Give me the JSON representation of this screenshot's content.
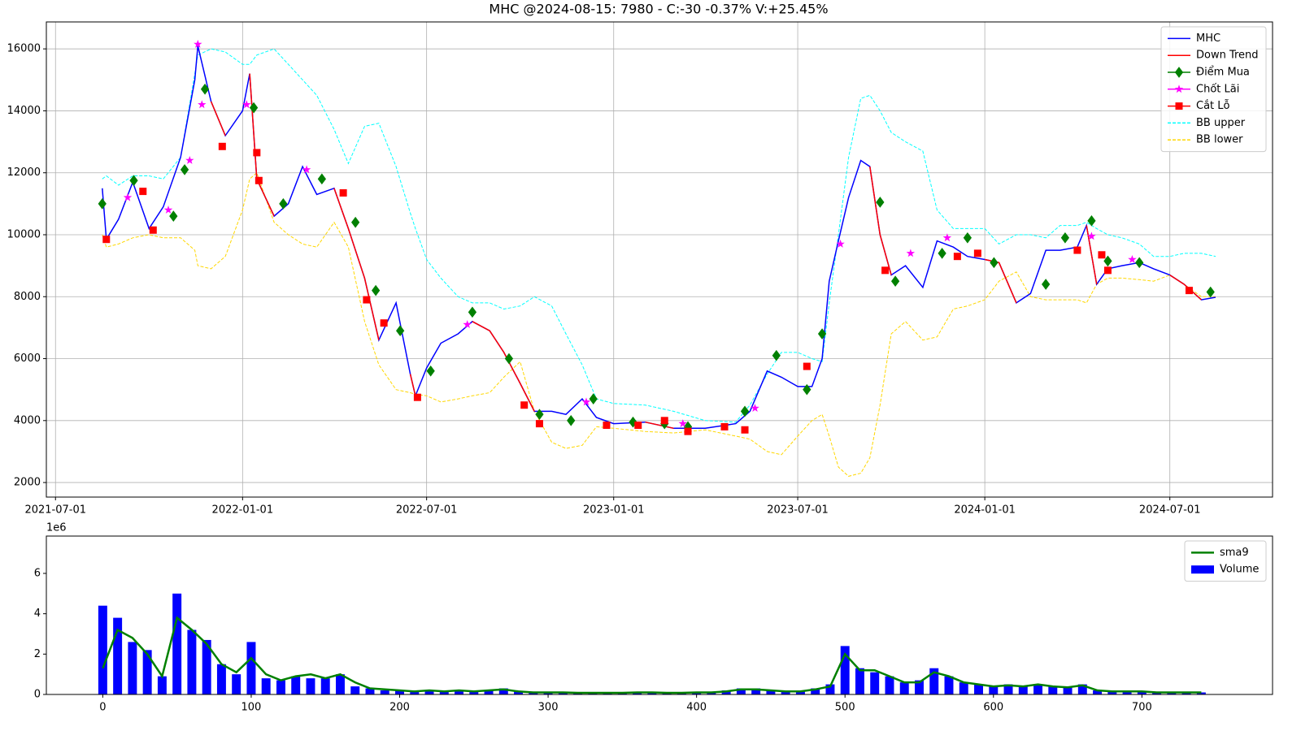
{
  "chart_data": [
    {
      "type": "line",
      "title": "MHC @2024-08-15: 7980 - C:-30 -0.37% V:+25.45%",
      "xlim": [
        "2021-06-22",
        "2024-10-10"
      ],
      "xticks": [
        "2021-07-01",
        "2022-01-01",
        "2022-07-01",
        "2023-01-01",
        "2023-07-01",
        "2024-01-01",
        "2024-07-01"
      ],
      "ylim": [
        1530,
        16870
      ],
      "yticks": [
        2000,
        4000,
        6000,
        8000,
        10000,
        12000,
        14000,
        16000
      ],
      "grid": true,
      "legend": "upper right",
      "x": [
        "2021-08-16",
        "2021-08-20",
        "2021-09-01",
        "2021-09-15",
        "2021-10-01",
        "2021-10-15",
        "2021-11-01",
        "2021-11-15",
        "2021-11-18",
        "2021-12-01",
        "2021-12-15",
        "2022-01-01",
        "2022-01-08",
        "2022-01-15",
        "2022-02-01",
        "2022-02-15",
        "2022-03-01",
        "2022-03-15",
        "2022-04-01",
        "2022-04-15",
        "2022-05-01",
        "2022-05-15",
        "2022-06-01",
        "2022-06-15",
        "2022-06-20",
        "2022-07-01",
        "2022-07-15",
        "2022-08-01",
        "2022-08-15",
        "2022-09-01",
        "2022-09-15",
        "2022-10-01",
        "2022-10-15",
        "2022-11-01",
        "2022-11-15",
        "2022-12-01",
        "2022-12-15",
        "2023-01-01",
        "2023-02-01",
        "2023-03-01",
        "2023-04-01",
        "2023-05-01",
        "2023-05-15",
        "2023-06-01",
        "2023-06-15",
        "2023-07-01",
        "2023-07-15",
        "2023-07-25",
        "2023-08-01",
        "2023-08-10",
        "2023-08-20",
        "2023-09-01",
        "2023-09-10",
        "2023-09-20",
        "2023-10-01",
        "2023-10-15",
        "2023-11-01",
        "2023-11-15",
        "2023-12-01",
        "2023-12-15",
        "2024-01-01",
        "2024-01-15",
        "2024-02-01",
        "2024-02-15",
        "2024-03-01",
        "2024-03-15",
        "2024-04-01",
        "2024-04-10",
        "2024-04-20",
        "2024-05-01",
        "2024-05-15",
        "2024-06-01",
        "2024-06-15",
        "2024-07-01",
        "2024-07-15",
        "2024-08-01",
        "2024-08-15"
      ],
      "series": [
        {
          "name": "MHC",
          "color": "#0000ff",
          "style": "solid",
          "values": [
            11500,
            9850,
            10500,
            11700,
            10200,
            10900,
            12500,
            15000,
            16100,
            14300,
            13200,
            14000,
            15200,
            11800,
            10600,
            11000,
            12200,
            11300,
            11500,
            10200,
            8600,
            6600,
            7800,
            5500,
            4800,
            5700,
            6500,
            6800,
            7200,
            6900,
            6200,
            5200,
            4300,
            4300,
            4200,
            4700,
            4100,
            3900,
            3950,
            3750,
            3750,
            3900,
            4300,
            5600,
            5400,
            5100,
            5100,
            6000,
            8500,
            9800,
            11200,
            12400,
            12200,
            10000,
            8700,
            9000,
            8300,
            9800,
            9600,
            9300,
            9200,
            9100,
            7800,
            8100,
            9500,
            9500,
            9600,
            10300,
            8400,
            8900,
            9000,
            9100,
            8900,
            8700,
            8400,
            7900,
            7980
          ]
        },
        {
          "name": "Down Trend",
          "color": "#ff0000",
          "style": "solid",
          "values": [
            null,
            null,
            null,
            null,
            null,
            null,
            null,
            null,
            null,
            14300,
            13200,
            null,
            15200,
            11800,
            10600,
            null,
            null,
            null,
            11500,
            10200,
            8600,
            6600,
            null,
            5500,
            4800,
            null,
            null,
            null,
            7200,
            6900,
            6200,
            5200,
            4300,
            null,
            null,
            null,
            null,
            null,
            3950,
            3750,
            null,
            null,
            null,
            null,
            null,
            null,
            null,
            null,
            null,
            null,
            null,
            null,
            12200,
            10000,
            8700,
            null,
            null,
            null,
            null,
            null,
            9200,
            9100,
            7800,
            null,
            null,
            null,
            null,
            10300,
            8400,
            null,
            null,
            null,
            null,
            8700,
            8400,
            7900,
            null
          ]
        },
        {
          "name": "BB upper",
          "color": "#00ffff",
          "style": "dashed",
          "values": [
            11800,
            11900,
            11600,
            11900,
            11900,
            11800,
            12500,
            15200,
            15800,
            16000,
            15900,
            15500,
            15500,
            15800,
            16000,
            15500,
            15000,
            14500,
            13400,
            12300,
            13500,
            13600,
            12200,
            10700,
            10200,
            9200,
            8600,
            8000,
            7800,
            7800,
            7600,
            7700,
            8000,
            7700,
            6800,
            5800,
            4700,
            4550,
            4500,
            4300,
            4000,
            3950,
            4500,
            5500,
            6200,
            6200,
            6000,
            5900,
            7800,
            10000,
            12500,
            14400,
            14500,
            14000,
            13300,
            13000,
            12700,
            10800,
            10200,
            10200,
            10200,
            9700,
            10000,
            10000,
            9900,
            10300,
            10300,
            10400,
            10200,
            10000,
            9900,
            9700,
            9300,
            9300,
            9400,
            9400,
            9300
          ]
        },
        {
          "name": "BB lower",
          "color": "#ffd700",
          "style": "dashed",
          "values": [
            10000,
            9600,
            9700,
            9900,
            10000,
            9900,
            9900,
            9500,
            9000,
            8900,
            9300,
            10800,
            11800,
            12000,
            10400,
            10000,
            9700,
            9600,
            10400,
            9600,
            7200,
            5800,
            5000,
            4900,
            4850,
            4800,
            4600,
            4700,
            4800,
            4900,
            5400,
            5900,
            4300,
            3300,
            3100,
            3200,
            3800,
            3750,
            3650,
            3600,
            3700,
            3500,
            3400,
            3000,
            2900,
            3500,
            4000,
            4200,
            3500,
            2500,
            2200,
            2300,
            2800,
            4500,
            6800,
            7200,
            6600,
            6700,
            7600,
            7700,
            7900,
            8500,
            8800,
            8000,
            7900,
            7900,
            7900,
            7800,
            8400,
            8600,
            8600,
            8550,
            8500,
            8700,
            8400,
            8000,
            8000
          ]
        }
      ],
      "markers": [
        {
          "name": "Điểm Mua",
          "color": "#008000",
          "marker": "diamond",
          "x": [
            "2021-08-16",
            "2021-09-16",
            "2021-10-25",
            "2021-11-05",
            "2021-11-25",
            "2022-01-12",
            "2022-02-10",
            "2022-03-20",
            "2022-04-22",
            "2022-05-12",
            "2022-06-05",
            "2022-07-05",
            "2022-08-15",
            "2022-09-20",
            "2022-10-20",
            "2022-11-20",
            "2022-12-12",
            "2023-01-20",
            "2023-02-20",
            "2023-03-15",
            "2023-05-10",
            "2023-06-10",
            "2023-07-10",
            "2023-07-25",
            "2023-09-20",
            "2023-10-05",
            "2023-11-20",
            "2023-12-15",
            "2024-01-10",
            "2024-03-01",
            "2024-03-20",
            "2024-04-15",
            "2024-05-01",
            "2024-06-01",
            "2024-08-10"
          ],
          "values": [
            11000,
            11750,
            10600,
            12100,
            14700,
            14100,
            11000,
            11800,
            10400,
            8200,
            6900,
            5600,
            7500,
            6000,
            4200,
            4000,
            4700,
            3950,
            3900,
            3800,
            4300,
            6100,
            5000,
            6800,
            11050,
            8500,
            9400,
            9900,
            9100,
            8400,
            9900,
            10450,
            9150,
            9100,
            8150
          ]
        },
        {
          "name": "Chốt Lãi",
          "color": "#ff00ff",
          "marker": "star",
          "x": [
            "2021-09-10",
            "2021-10-20",
            "2021-11-10",
            "2021-11-18",
            "2021-11-22",
            "2022-01-05",
            "2022-03-05",
            "2022-08-10",
            "2022-12-05",
            "2023-03-10",
            "2023-05-20",
            "2023-08-12",
            "2023-10-20",
            "2023-11-25",
            "2024-04-15",
            "2024-05-25"
          ],
          "values": [
            11200,
            10800,
            12400,
            16150,
            14200,
            14200,
            12100,
            7100,
            4600,
            3900,
            4400,
            9700,
            9400,
            9900,
            9950,
            9200
          ]
        },
        {
          "name": "Cắt Lỗ",
          "color": "#ff0000",
          "marker": "square",
          "x": [
            "2021-08-20",
            "2021-09-25",
            "2021-10-05",
            "2021-12-12",
            "2022-01-15",
            "2022-01-17",
            "2022-04-10",
            "2022-05-03",
            "2022-05-20",
            "2022-06-22",
            "2022-10-05",
            "2022-10-20",
            "2022-12-25",
            "2023-01-25",
            "2023-02-20",
            "2023-03-15",
            "2023-04-20",
            "2023-05-10",
            "2023-07-10",
            "2023-09-25",
            "2023-12-05",
            "2023-12-25",
            "2024-04-01",
            "2024-04-25",
            "2024-05-01",
            "2024-07-20"
          ],
          "values": [
            9850,
            11400,
            10150,
            12850,
            12650,
            11750,
            11350,
            7900,
            7150,
            4750,
            4500,
            3900,
            3850,
            3850,
            4000,
            3650,
            3800,
            3700,
            5750,
            8850,
            9300,
            9400,
            9500,
            9350,
            8850,
            8200
          ]
        }
      ],
      "legend_order": [
        "MHC",
        "Down Trend",
        "Điểm Mua",
        "Chốt Lãi",
        "Cắt Lỗ",
        "BB upper",
        "BB lower"
      ]
    },
    {
      "type": "bar",
      "offset_label": "1e6",
      "xlim": [
        -38,
        788
      ],
      "xticks": [
        0,
        100,
        200,
        300,
        400,
        500,
        600,
        700
      ],
      "ylim": [
        0,
        7.85
      ],
      "yticks": [
        0,
        2,
        4,
        6
      ],
      "grid": false,
      "legend": "upper right",
      "x": [
        0,
        10,
        20,
        30,
        40,
        50,
        60,
        70,
        80,
        90,
        100,
        110,
        120,
        130,
        140,
        150,
        160,
        170,
        180,
        190,
        200,
        210,
        220,
        230,
        240,
        250,
        260,
        270,
        280,
        290,
        300,
        310,
        320,
        330,
        340,
        350,
        360,
        370,
        380,
        390,
        400,
        410,
        420,
        430,
        440,
        450,
        460,
        470,
        480,
        490,
        500,
        510,
        520,
        530,
        540,
        550,
        560,
        570,
        580,
        590,
        600,
        610,
        620,
        630,
        640,
        650,
        660,
        670,
        680,
        690,
        700,
        710,
        720,
        730,
        740
      ],
      "series": [
        {
          "name": "sma9",
          "color": "#008000",
          "kind": "line",
          "values": [
            1.3,
            3.2,
            2.8,
            2.0,
            0.9,
            3.8,
            3.2,
            2.5,
            1.5,
            1.1,
            1.8,
            1.0,
            0.7,
            0.9,
            1.0,
            0.8,
            1.0,
            0.6,
            0.3,
            0.25,
            0.2,
            0.15,
            0.2,
            0.15,
            0.2,
            0.15,
            0.2,
            0.25,
            0.15,
            0.1,
            0.1,
            0.1,
            0.08,
            0.08,
            0.08,
            0.08,
            0.1,
            0.1,
            0.08,
            0.08,
            0.1,
            0.1,
            0.15,
            0.25,
            0.25,
            0.2,
            0.15,
            0.15,
            0.25,
            0.4,
            2.0,
            1.2,
            1.2,
            0.9,
            0.6,
            0.6,
            1.1,
            0.9,
            0.6,
            0.5,
            0.4,
            0.45,
            0.4,
            0.5,
            0.4,
            0.35,
            0.45,
            0.2,
            0.15,
            0.15,
            0.15,
            0.1,
            0.1,
            0.1,
            0.1
          ]
        },
        {
          "name": "Volume",
          "color": "#0000ff",
          "kind": "bar",
          "values": [
            4.4,
            3.8,
            2.6,
            2.2,
            0.9,
            5.0,
            3.2,
            2.7,
            1.5,
            1.0,
            2.6,
            0.8,
            0.7,
            0.9,
            0.8,
            0.8,
            1.0,
            0.4,
            0.3,
            0.2,
            0.2,
            0.15,
            0.2,
            0.2,
            0.2,
            0.15,
            0.2,
            0.3,
            0.15,
            0.1,
            0.1,
            0.1,
            0.1,
            0.08,
            0.08,
            0.08,
            0.1,
            0.1,
            0.08,
            0.08,
            0.1,
            0.1,
            0.2,
            0.3,
            0.3,
            0.2,
            0.15,
            0.15,
            0.3,
            0.5,
            2.4,
            1.3,
            1.1,
            0.9,
            0.6,
            0.7,
            1.3,
            0.9,
            0.6,
            0.5,
            0.4,
            0.5,
            0.4,
            0.5,
            0.4,
            0.4,
            0.5,
            0.2,
            0.15,
            0.15,
            0.15,
            0.1,
            0.1,
            0.1,
            0.1
          ]
        }
      ]
    }
  ]
}
